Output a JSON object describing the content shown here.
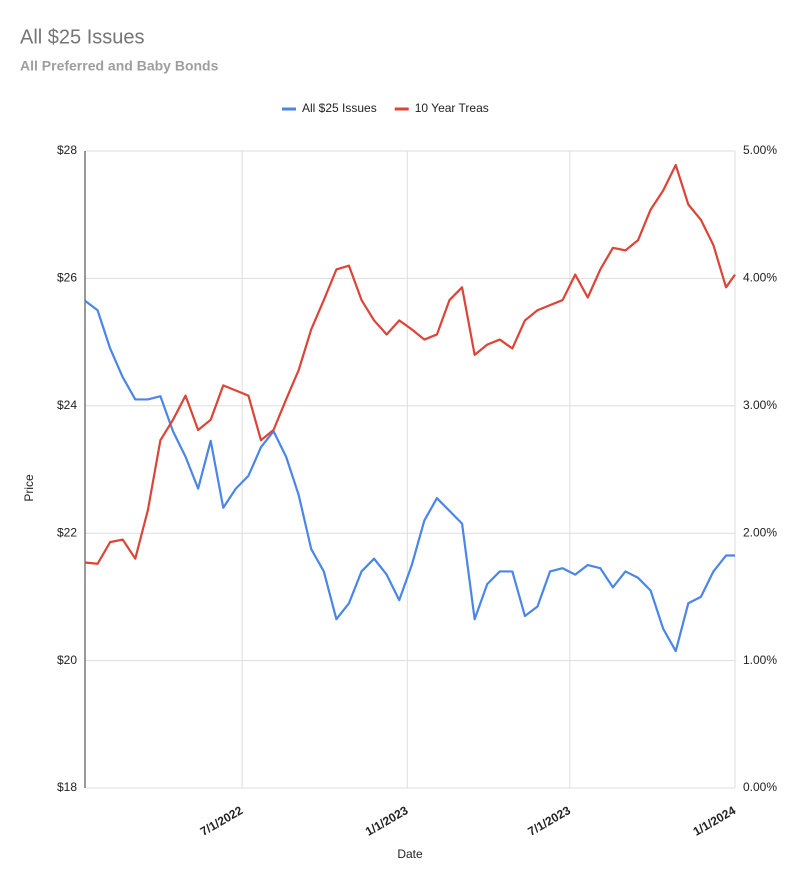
{
  "chart_data": {
    "type": "line",
    "title": "All $25 Issues",
    "subtitle": "All Preferred and Baby Bonds",
    "xlabel": "Date",
    "ylabel": "Price",
    "legend": "top",
    "grid": true,
    "x": [
      "2022-01-07",
      "2022-01-21",
      "2022-02-04",
      "2022-02-18",
      "2022-03-04",
      "2022-03-18",
      "2022-04-01",
      "2022-04-15",
      "2022-04-29",
      "2022-05-13",
      "2022-05-27",
      "2022-06-10",
      "2022-06-24",
      "2022-07-08",
      "2022-07-22",
      "2022-08-05",
      "2022-08-19",
      "2022-09-02",
      "2022-09-16",
      "2022-09-30",
      "2022-10-14",
      "2022-10-28",
      "2022-11-11",
      "2022-11-25",
      "2022-12-09",
      "2022-12-23",
      "2023-01-06",
      "2023-01-20",
      "2023-02-03",
      "2023-02-17",
      "2023-03-03",
      "2023-03-17",
      "2023-03-31",
      "2023-04-14",
      "2023-04-28",
      "2023-05-12",
      "2023-05-26",
      "2023-06-09",
      "2023-06-23",
      "2023-07-07",
      "2023-07-21",
      "2023-08-04",
      "2023-08-18",
      "2023-09-01",
      "2023-09-15",
      "2023-09-29",
      "2023-10-13",
      "2023-10-27",
      "2023-11-10",
      "2023-11-24",
      "2023-12-08",
      "2023-12-22",
      "2024-01-01"
    ],
    "series": [
      {
        "name": "All $25 Issues",
        "color": "#4a86e8",
        "axis": "y",
        "values": [
          25.65,
          25.5,
          24.9,
          24.45,
          24.1,
          24.1,
          24.15,
          23.6,
          23.2,
          22.7,
          23.45,
          22.4,
          22.7,
          22.9,
          23.35,
          23.6,
          23.2,
          22.6,
          21.75,
          21.4,
          20.65,
          20.9,
          21.4,
          21.6,
          21.35,
          20.95,
          21.5,
          22.2,
          22.55,
          22.35,
          22.15,
          20.65,
          21.2,
          21.4,
          21.4,
          20.7,
          20.85,
          21.4,
          21.45,
          21.35,
          21.5,
          21.45,
          21.15,
          21.4,
          21.3,
          21.1,
          20.5,
          20.15,
          20.9,
          21.0,
          21.4,
          21.65,
          21.65
        ]
      },
      {
        "name": "10 Year Treas",
        "color": "#db4437",
        "axis": "y2",
        "values": [
          1.77,
          1.76,
          1.93,
          1.95,
          1.8,
          2.18,
          2.73,
          2.89,
          3.08,
          2.81,
          2.89,
          3.16,
          3.12,
          3.08,
          2.73,
          2.81,
          3.05,
          3.28,
          3.6,
          3.83,
          4.07,
          4.1,
          3.83,
          3.67,
          3.56,
          3.67,
          3.6,
          3.52,
          3.56,
          3.83,
          3.93,
          3.4,
          3.48,
          3.52,
          3.45,
          3.67,
          3.75,
          3.79,
          3.83,
          4.03,
          3.85,
          4.07,
          4.24,
          4.22,
          4.3,
          4.54,
          4.69,
          4.89,
          4.58,
          4.46,
          4.26,
          3.93,
          4.03
        ]
      }
    ],
    "xlim": [
      "2022-01-07",
      "2024-01-01"
    ],
    "xticks": [
      {
        "value": "2022-07-01",
        "label": "7/1/2022"
      },
      {
        "value": "2023-01-01",
        "label": "1/1/2023"
      },
      {
        "value": "2023-07-01",
        "label": "7/1/2023"
      },
      {
        "value": "2024-01-01",
        "label": "1/1/2024"
      }
    ],
    "ylim": [
      18,
      28
    ],
    "yticks": [
      {
        "value": 18,
        "label": "$18"
      },
      {
        "value": 20,
        "label": "$20"
      },
      {
        "value": 22,
        "label": "$22"
      },
      {
        "value": 24,
        "label": "$24"
      },
      {
        "value": 26,
        "label": "$26"
      },
      {
        "value": 28,
        "label": "$28"
      }
    ],
    "y2lim": [
      0,
      5
    ],
    "y2ticks": [
      {
        "value": 0,
        "label": "0.00%"
      },
      {
        "value": 1,
        "label": "1.00%"
      },
      {
        "value": 2,
        "label": "2.00%"
      },
      {
        "value": 3,
        "label": "3.00%"
      },
      {
        "value": 4,
        "label": "4.00%"
      },
      {
        "value": 5,
        "label": "5.00%"
      }
    ]
  }
}
